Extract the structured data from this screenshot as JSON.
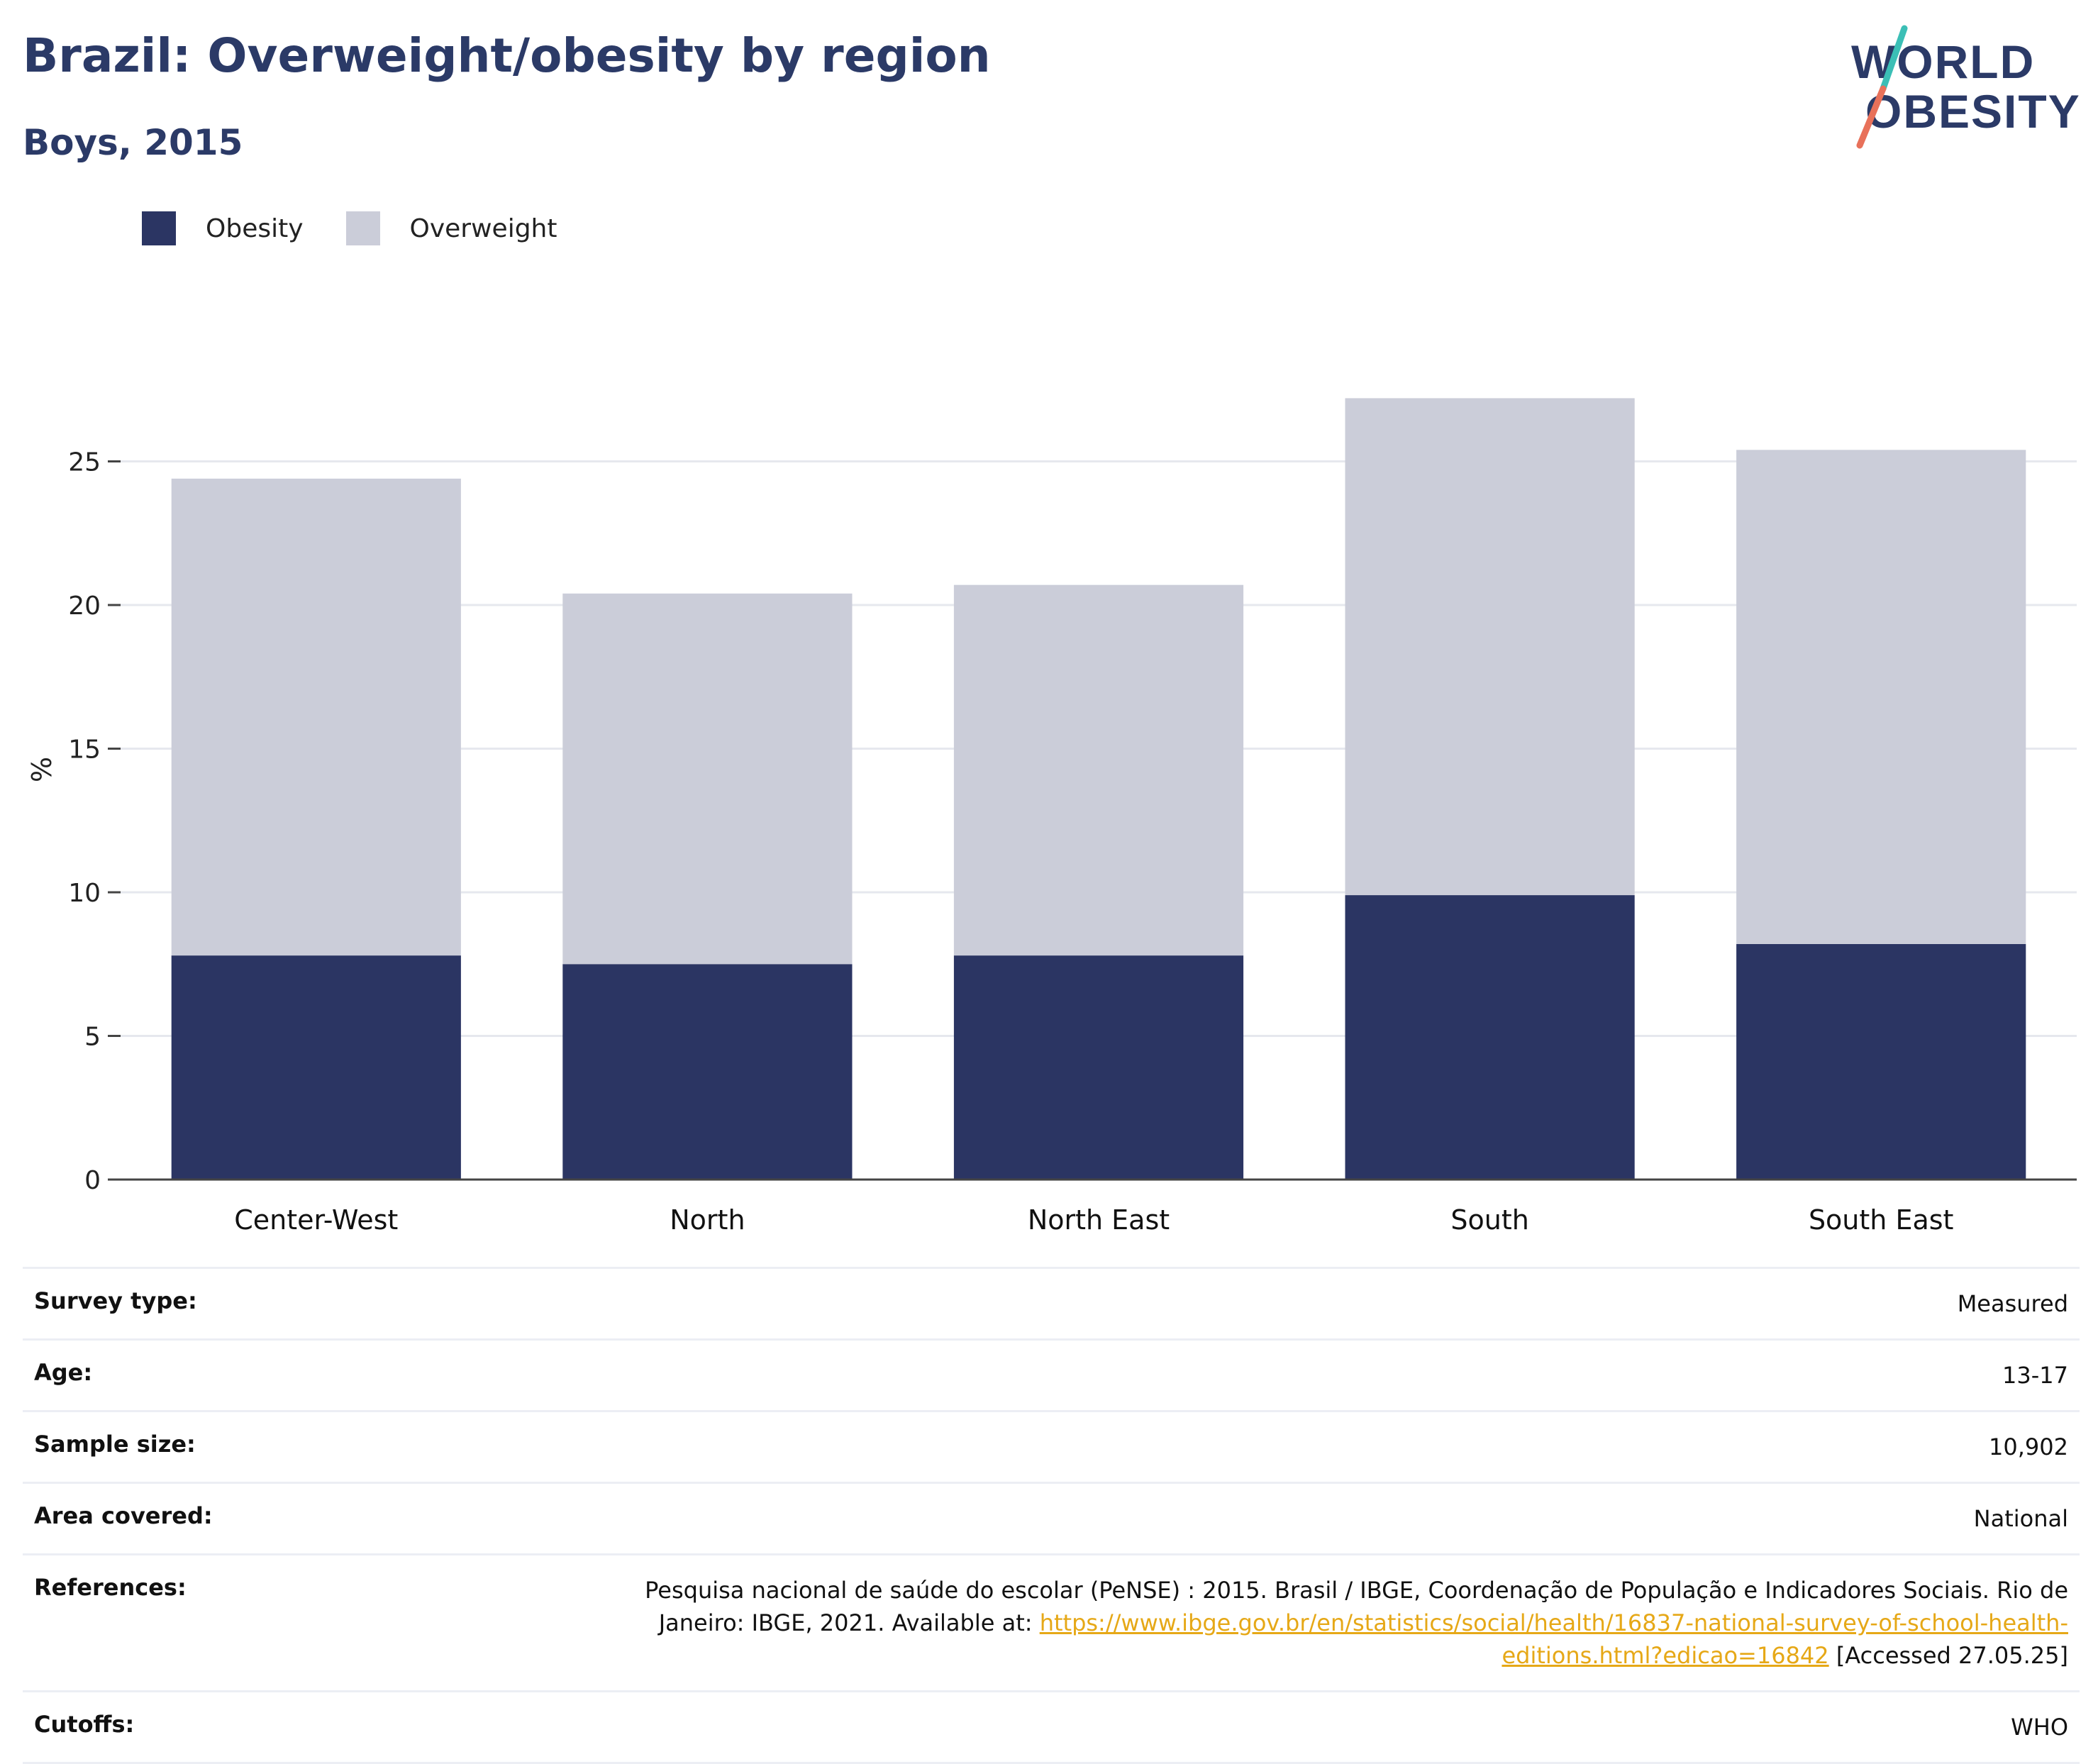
{
  "header": {
    "title": "Brazil: Overweight/obesity by region",
    "subtitle": "Boys, 2015"
  },
  "logo": {
    "line1": "WORLD",
    "line2": "OBESITY"
  },
  "colors": {
    "obesity": "#2b3563",
    "overweight": "#cbcdd9",
    "title": "#2b3a67",
    "link": "#e6a817"
  },
  "chart_data": {
    "type": "bar",
    "stacked": true,
    "categories": [
      "Center-West",
      "North",
      "North East",
      "South",
      "South East"
    ],
    "series": [
      {
        "name": "Obesity",
        "values": [
          7.8,
          7.5,
          7.8,
          9.9,
          8.2
        ]
      },
      {
        "name": "Overweight",
        "values": [
          16.6,
          12.9,
          12.9,
          17.3,
          17.2
        ]
      }
    ],
    "totals": [
      24.4,
      20.4,
      20.7,
      27.2,
      25.4
    ],
    "ylabel": "%",
    "xlabel": "",
    "ylim": [
      0,
      30
    ],
    "yticks": [
      0,
      5,
      10,
      15,
      20,
      25
    ],
    "grid": true,
    "legend": "top-left"
  },
  "info": {
    "survey_type": {
      "label": "Survey type:",
      "value": "Measured"
    },
    "age": {
      "label": "Age:",
      "value": "13-17"
    },
    "sample_size": {
      "label": "Sample size:",
      "value": "10,902"
    },
    "area_covered": {
      "label": "Area covered:",
      "value": "National"
    },
    "references": {
      "label": "References:",
      "text_before": "Pesquisa nacional de saúde do escolar (PeNSE) : 2015. Brasil / IBGE, Coordenação de População e Indicadores Sociais. Rio de Janeiro: IBGE, 2021. Available at: ",
      "link": "https://www.ibge.gov.br/en/statistics/social/health/16837-national-survey-of-school-health-editions.html?edicao=16842",
      "text_after": " [Accessed 27.05.25]"
    },
    "cutoffs": {
      "label": "Cutoffs:",
      "value": "WHO"
    }
  }
}
